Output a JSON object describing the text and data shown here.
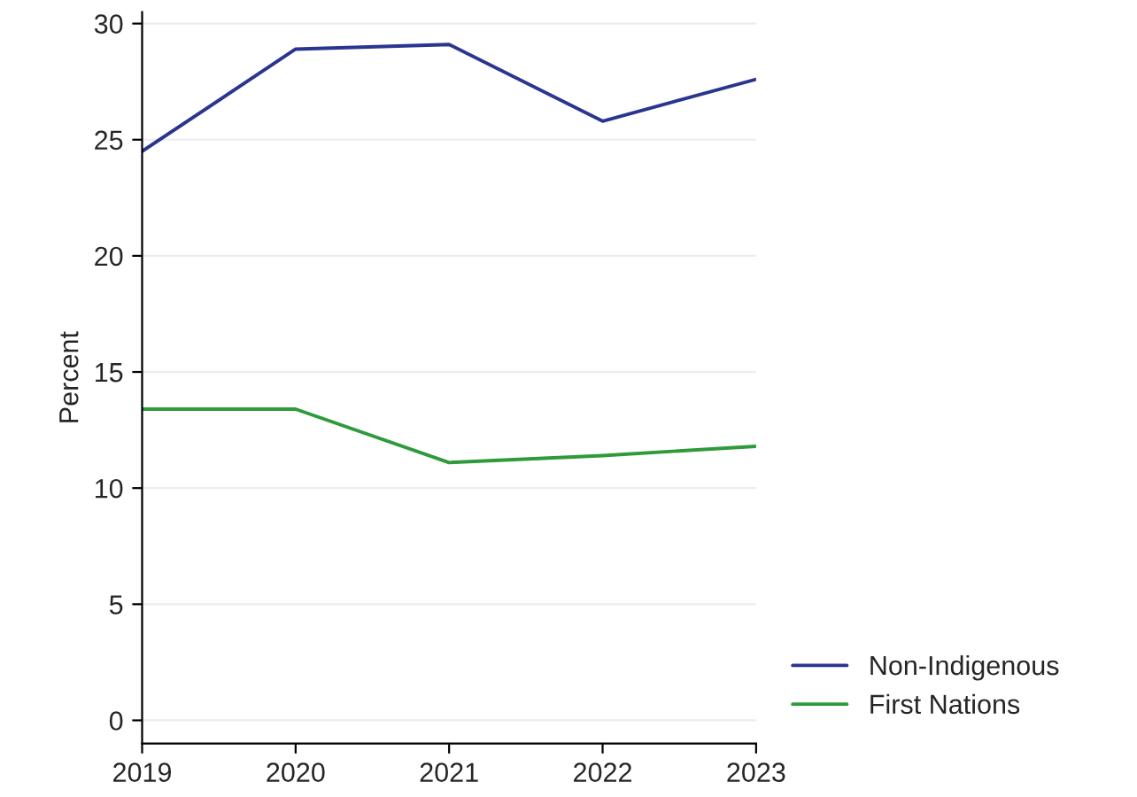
{
  "chart_data": {
    "type": "line",
    "ylabel": "Percent",
    "x": [
      2019,
      2020,
      2021,
      2022,
      2023
    ],
    "series": [
      {
        "name": "Non-Indigenous",
        "color": "#2a3590",
        "values": [
          24.5,
          28.9,
          29.1,
          25.8,
          27.6
        ]
      },
      {
        "name": "First Nations",
        "color": "#2e9a3a",
        "values": [
          13.4,
          13.4,
          11.1,
          11.4,
          11.8
        ]
      }
    ],
    "xlim": [
      2019,
      2023
    ],
    "xticks": [
      2019,
      2020,
      2021,
      2022,
      2023
    ],
    "ylim": [
      -1,
      30.5
    ],
    "yticks": [
      0,
      5,
      10,
      15,
      20,
      25,
      30
    ],
    "grid": "y",
    "legend": "bottom right",
    "marker": "none",
    "line_style": "solid"
  }
}
